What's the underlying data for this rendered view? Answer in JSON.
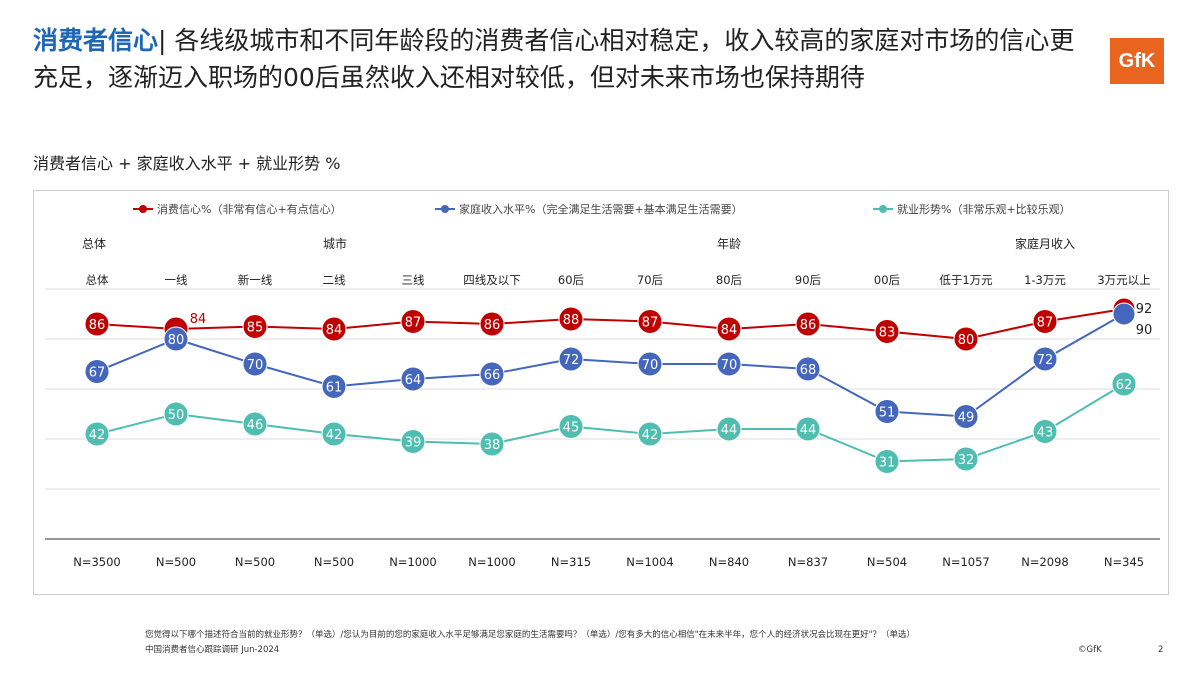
{
  "header": {
    "title_highlight": "消费者信心",
    "title_rest": "| 各线级城市和不同年龄段的消费者信心相对稳定，收入较高的家庭对市场的信心更充足，逐渐迈入职场的00后虽然收入还相对较低，但对未来市场也保持期待",
    "subtitle": "消费者信心 + 家庭收入水平 + 就业形势 %",
    "logo": "GfK"
  },
  "footer": {
    "note": "您觉得以下哪个描述符合当前的就业形势？（单选）/您认为目前的您的家庭收入水平足够满足您家庭的生活需要吗？（单选）/您有多大的信心相信\"在未来半年，您个人的经济状况会比现在更好\"？（单选）",
    "source": "中国消费者信心跟踪调研 Jun-2024",
    "copyright": "©GfK",
    "page": "2"
  },
  "chart_data": {
    "type": "line",
    "groups": [
      {
        "label": "总体",
        "span": 1
      },
      {
        "label": "城市",
        "span": 5
      },
      {
        "label": "年龄",
        "span": 5
      },
      {
        "label": "家庭月收入",
        "span": 3
      }
    ],
    "categories": [
      "总体",
      "一线",
      "新一线",
      "二线",
      "三线",
      "四线及以下",
      "60后",
      "70后",
      "80后",
      "90后",
      "00后",
      "低于1万元",
      "1-3万元",
      "3万元以上"
    ],
    "sample_sizes": [
      "N=3500",
      "N=500",
      "N=500",
      "N=500",
      "N=1000",
      "N=1000",
      "N=315",
      "N=1004",
      "N=840",
      "N=837",
      "N=504",
      "N=1057",
      "N=2098",
      "N=345"
    ],
    "series": [
      {
        "name": "消费信心%（非常有信心+有点信心）",
        "color": "#c00000",
        "values": [
          86,
          84,
          85,
          84,
          87,
          86,
          88,
          87,
          84,
          86,
          83,
          80,
          87,
          92
        ]
      },
      {
        "name": "家庭收入水平%（完全满足生活需要+基本满足生活需要）",
        "color": "#4466bb",
        "values": [
          67,
          80,
          70,
          61,
          64,
          66,
          72,
          70,
          70,
          68,
          51,
          49,
          72,
          90
        ]
      },
      {
        "name": "就业形势%（非常乐观+比较乐观）",
        "color": "#4fbdb0",
        "values": [
          42,
          50,
          46,
          42,
          39,
          38,
          45,
          42,
          44,
          44,
          31,
          32,
          43,
          62
        ]
      }
    ],
    "ylim": [
      0,
      100
    ],
    "grid": true,
    "legend": "top"
  }
}
